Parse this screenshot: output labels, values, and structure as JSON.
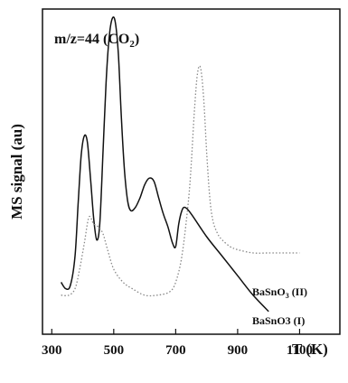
{
  "chart_data": {
    "type": "line",
    "ylabel": "MS signal (au)",
    "xlabel": "T (K)",
    "xlim": [
      270,
      1230
    ],
    "ylim": [
      0,
      1
    ],
    "x_ticks": [
      300,
      500,
      700,
      900,
      1100
    ],
    "y_ticks_shown": false,
    "grid": false,
    "annotation": {
      "mz_prefix": "m/z=44 (CO",
      "mz_sub": "2",
      "mz_suffix": ")"
    },
    "series": [
      {
        "name": "BaSnO3 (I)",
        "label_main": "BaSnO3 (I)",
        "style": "solid",
        "color": "#111111",
        "x": [
          330,
          345,
          360,
          375,
          385,
          395,
          405,
          415,
          425,
          435,
          445,
          455,
          465,
          475,
          485,
          495,
          505,
          515,
          525,
          535,
          545,
          555,
          570,
          585,
          600,
          615,
          630,
          645,
          660,
          675,
          690,
          700,
          710,
          720,
          730,
          750,
          800,
          850,
          900,
          950,
          1000
        ],
        "y": [
          0.16,
          0.14,
          0.15,
          0.24,
          0.4,
          0.55,
          0.61,
          0.59,
          0.48,
          0.36,
          0.29,
          0.34,
          0.55,
          0.77,
          0.91,
          0.97,
          0.96,
          0.86,
          0.66,
          0.5,
          0.41,
          0.38,
          0.39,
          0.42,
          0.46,
          0.48,
          0.47,
          0.42,
          0.37,
          0.33,
          0.28,
          0.27,
          0.34,
          0.38,
          0.39,
          0.37,
          0.3,
          0.24,
          0.18,
          0.12,
          0.07
        ]
      },
      {
        "name": "BaSnO3 (II)",
        "label_main": "BaSnO",
        "label_sub": "3",
        "label_suffix": " (II)",
        "style": "dotted",
        "color": "#888888",
        "x": [
          330,
          355,
          375,
          390,
          405,
          420,
          435,
          450,
          465,
          480,
          500,
          530,
          560,
          600,
          640,
          680,
          700,
          720,
          740,
          750,
          760,
          770,
          780,
          790,
          800,
          810,
          820,
          835,
          850,
          875,
          900,
          950,
          1000,
          1050,
          1100
        ],
        "y": [
          0.12,
          0.12,
          0.14,
          0.2,
          0.28,
          0.36,
          0.34,
          0.33,
          0.31,
          0.26,
          0.2,
          0.16,
          0.14,
          0.12,
          0.12,
          0.13,
          0.16,
          0.24,
          0.4,
          0.52,
          0.68,
          0.8,
          0.82,
          0.73,
          0.56,
          0.42,
          0.35,
          0.31,
          0.29,
          0.27,
          0.26,
          0.25,
          0.25,
          0.25,
          0.25
        ]
      }
    ]
  }
}
